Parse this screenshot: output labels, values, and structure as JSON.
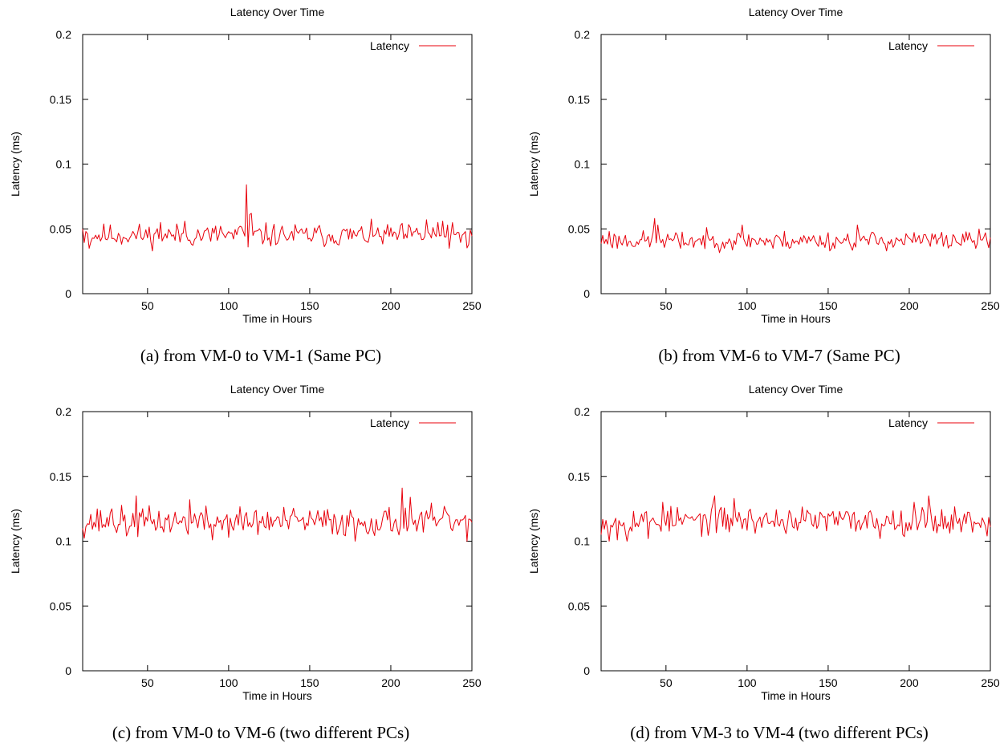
{
  "figure": {
    "captions": [
      "(a) from VM-0 to VM-1 (Same PC)",
      "(b) from VM-6 to VM-7 (Same PC)",
      "(c) from VM-0 to VM-6 (two different PCs)",
      "(d) from VM-3 to VM-4 (two different PCs)"
    ]
  },
  "colors": {
    "series": "#e8000b",
    "axis": "#000000"
  },
  "chart_data": [
    {
      "type": "line",
      "title": "Latency Over Time",
      "xlabel": "Time in Hours",
      "ylabel": "Latency (ms)",
      "xlim": [
        10,
        250
      ],
      "ylim": [
        0,
        0.2
      ],
      "xticks": [
        50,
        100,
        150,
        200,
        250
      ],
      "yticks": [
        0,
        0.05,
        0.1,
        0.15,
        0.2
      ],
      "ytick_labels": [
        "0",
        "0.05",
        "0.1",
        "0.15",
        "0.2"
      ],
      "legend": "top-right",
      "grid": false,
      "series": [
        {
          "name": "Latency",
          "baseline": 0.045,
          "noise": 0.0055,
          "seed": 11,
          "peaks": [
            [
              111,
              0.084
            ],
            [
              107,
              0.052
            ],
            [
              113,
              0.061
            ],
            [
              114,
              0.062
            ],
            [
              58,
              0.055
            ],
            [
              73,
              0.056
            ],
            [
              95,
              0.052
            ],
            [
              222,
              0.057
            ],
            [
              229,
              0.055
            ],
            [
              232,
              0.056
            ],
            [
              10,
              0.05
            ],
            [
              12,
              0.048
            ],
            [
              236,
              0.035
            ],
            [
              248,
              0.038
            ],
            [
              14,
              0.035
            ],
            [
              112,
              0.036
            ]
          ]
        }
      ]
    },
    {
      "type": "line",
      "title": "Latency Over Time",
      "xlabel": "Time in Hours",
      "ylabel": "Latency (ms)",
      "xlim": [
        10,
        250
      ],
      "ylim": [
        0,
        0.2
      ],
      "xticks": [
        50,
        100,
        150,
        200,
        250
      ],
      "yticks": [
        0,
        0.05,
        0.1,
        0.15,
        0.2
      ],
      "ytick_labels": [
        "0",
        "0.05",
        "0.1",
        "0.15",
        "0.2"
      ],
      "legend": "top-right",
      "grid": false,
      "series": [
        {
          "name": "Latency",
          "baseline": 0.041,
          "noise": 0.0045,
          "seed": 23,
          "peaks": [
            [
              43,
              0.058
            ],
            [
              45,
              0.053
            ],
            [
              97,
              0.053
            ],
            [
              168,
              0.053
            ],
            [
              15,
              0.048
            ],
            [
              59,
              0.035
            ],
            [
              116,
              0.035
            ],
            [
              152,
              0.035
            ],
            [
              233,
              0.046
            ],
            [
              247,
              0.047
            ]
          ]
        }
      ]
    },
    {
      "type": "line",
      "title": "Latency Over Time",
      "xlabel": "Time in Hours",
      "ylabel": "Latency (ms)",
      "xlim": [
        10,
        250
      ],
      "ylim": [
        0,
        0.2
      ],
      "xticks": [
        50,
        100,
        150,
        200,
        250
      ],
      "yticks": [
        0,
        0.05,
        0.1,
        0.15,
        0.2
      ],
      "ytick_labels": [
        "0",
        "0.05",
        "0.1",
        "0.15",
        "0.2"
      ],
      "legend": "top-right",
      "grid": false,
      "series": [
        {
          "name": "Latency",
          "baseline": 0.115,
          "noise": 0.007,
          "seed": 37,
          "peaks": [
            [
              43,
              0.135
            ],
            [
              207,
              0.141
            ],
            [
              212,
              0.134
            ],
            [
              76,
              0.132
            ],
            [
              28,
              0.125
            ],
            [
              37,
              0.104
            ],
            [
              90,
              0.101
            ],
            [
              178,
              0.1
            ],
            [
              247,
              0.1
            ],
            [
              248,
              0.117
            ]
          ]
        }
      ]
    },
    {
      "type": "line",
      "title": "Latency Over Time",
      "xlabel": "Time in Hours",
      "ylabel": "Latency (ms)",
      "xlim": [
        10,
        250
      ],
      "ylim": [
        0,
        0.2
      ],
      "xticks": [
        50,
        100,
        150,
        200,
        250
      ],
      "yticks": [
        0,
        0.05,
        0.1,
        0.15,
        0.2
      ],
      "ytick_labels": [
        "0",
        "0.05",
        "0.1",
        "0.15",
        "0.2"
      ],
      "legend": "top-right",
      "grid": false,
      "series": [
        {
          "name": "Latency",
          "baseline": 0.116,
          "noise": 0.0065,
          "seed": 53,
          "peaks": [
            [
              80,
              0.135
            ],
            [
              92,
              0.133
            ],
            [
              212,
              0.135
            ],
            [
              203,
              0.13
            ],
            [
              48,
              0.13
            ],
            [
              15,
              0.1
            ],
            [
              20,
              0.101
            ],
            [
              26,
              0.1
            ],
            [
              39,
              0.102
            ],
            [
              182,
              0.102
            ],
            [
              248,
              0.104
            ],
            [
              8,
              0.11
            ]
          ]
        }
      ]
    }
  ]
}
